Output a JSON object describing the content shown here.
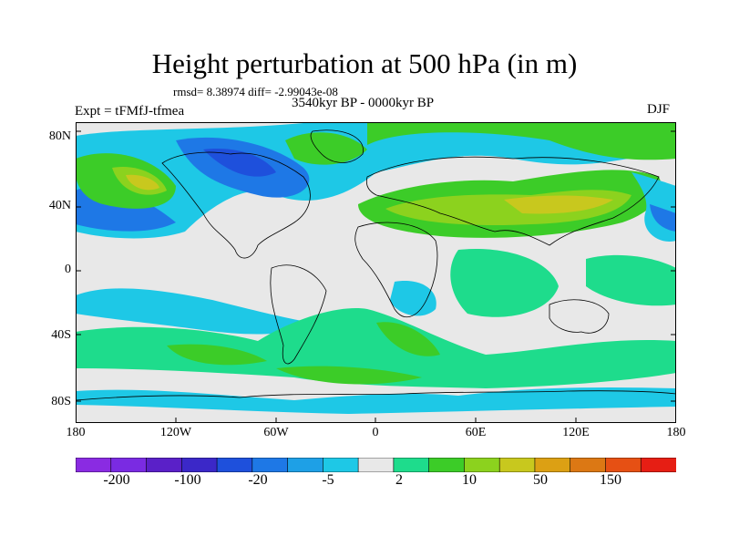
{
  "title": "Height perturbation at 500 hPa (in m)",
  "stats": "rmsd= 8.38974 diff= -2.99043e-08",
  "period": "3540kyr BP - 0000kyr BP",
  "experiment": "Expt = tFMfJ-tfmea",
  "season": "DJF",
  "lat_labels": [
    "80N",
    "40N",
    "0",
    "40S",
    "80S"
  ],
  "lon_labels": [
    "180",
    "120W",
    "60W",
    "0",
    "60E",
    "120E",
    "180"
  ],
  "colorbar": {
    "colors": [
      "#8a2be2",
      "#7a2be2",
      "#5a20c8",
      "#3b28c8",
      "#1e50dc",
      "#1e78e6",
      "#1ea0e6",
      "#1ec8e6",
      "#e8e8e8",
      "#1edc8c",
      "#3ccc28",
      "#8cd21e",
      "#c8c81e",
      "#dca014",
      "#dc7814",
      "#e65014",
      "#e61e14"
    ],
    "labels": [
      "-200",
      "-100",
      "-20",
      "-5",
      "2",
      "10",
      "50",
      "150"
    ]
  },
  "map_colors": {
    "background": "#e8e8e8",
    "coast": "#000000"
  }
}
